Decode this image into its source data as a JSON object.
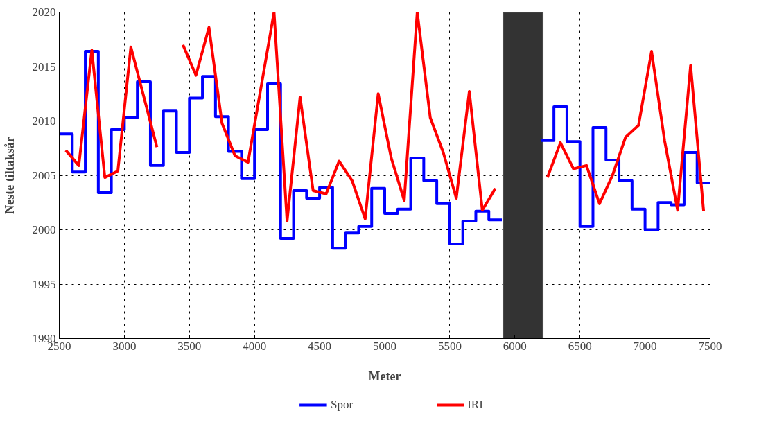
{
  "chart_data": {
    "type": "line",
    "xlabel": "Meter",
    "ylabel": "Neste tiltaksår",
    "xlim": [
      2500,
      7500
    ],
    "ylim": [
      1990,
      2020
    ],
    "xticks": [
      2500,
      3000,
      3500,
      4000,
      4500,
      5000,
      5500,
      6000,
      6500,
      7000,
      7500
    ],
    "yticks": [
      1990,
      1995,
      2000,
      2005,
      2010,
      2015,
      2020
    ],
    "grid": true,
    "legend": "bottom",
    "bands": [
      {
        "axis": "x",
        "from": 5910,
        "to": 6215,
        "color": "#333333"
      }
    ],
    "series": [
      {
        "name": "Spor",
        "type": "step",
        "color": "#0000ff",
        "x": [
          2500,
          2600,
          2700,
          2800,
          2900,
          3000,
          3100,
          3200,
          3300,
          3400,
          3500,
          3600,
          3700,
          3800,
          3900,
          4000,
          4100,
          4200,
          4300,
          4400,
          4500,
          4600,
          4700,
          4800,
          4900,
          5000,
          5100,
          5200,
          5300,
          5400,
          5500,
          5600,
          5700,
          5800,
          6200,
          6300,
          6400,
          6500,
          6600,
          6700,
          6800,
          6900,
          7000,
          7100,
          7200,
          7300,
          7400,
          7500
        ],
        "values": [
          2008.8,
          2005.3,
          2016.4,
          2003.4,
          2009.2,
          2010.3,
          2013.6,
          2005.9,
          2010.9,
          2007.1,
          2012.1,
          2014.1,
          2010.4,
          2007.2,
          2004.7,
          2009.2,
          2013.4,
          1999.2,
          2003.6,
          2002.9,
          2003.9,
          1998.3,
          1999.7,
          2000.3,
          2003.8,
          2001.5,
          2001.9,
          2006.6,
          2004.5,
          2002.4,
          1998.7,
          2000.8,
          2001.7,
          2000.9,
          2008.2,
          2011.3,
          2008.1,
          2000.3,
          2009.4,
          2006.4,
          2004.5,
          2001.9,
          2000.0,
          2002.5,
          2002.3,
          2007.1,
          2004.3,
          2004.3
        ]
      },
      {
        "name": "IRI",
        "type": "line",
        "color": "#ff0000",
        "x": [
          2550,
          2650,
          2750,
          2850,
          2950,
          3050,
          3150,
          3250,
          3350,
          3450,
          3550,
          3650,
          3750,
          3850,
          3950,
          4050,
          4150,
          4250,
          4350,
          4450,
          4550,
          4650,
          4750,
          4850,
          4950,
          5050,
          5150,
          5250,
          5350,
          5450,
          5550,
          5650,
          5750,
          5850,
          5950,
          6250,
          6350,
          6450,
          6550,
          6650,
          6750,
          6850,
          6950,
          7050,
          7150,
          7250,
          7350,
          7450
        ],
        "values": [
          2007.3,
          2005.9,
          2016.5,
          2004.8,
          2005.4,
          2016.8,
          2012.2,
          2007.6,
          null,
          2017.0,
          2014.2,
          2018.6,
          2009.8,
          2006.8,
          2006.2,
          2013.1,
          2020,
          2000.8,
          2012.2,
          2003.6,
          2003.3,
          2006.3,
          2004.5,
          2001.0,
          2012.5,
          2006.6,
          2002.7,
          2020,
          2010.3,
          2007.1,
          2002.9,
          2012.7,
          2001.8,
          2003.8,
          null,
          2004.8,
          2008.0,
          2005.6,
          2005.9,
          2002.4,
          2005.0,
          2008.5,
          2009.6,
          2016.4,
          2008.2,
          2001.8,
          2015.1,
          2001.7
        ]
      }
    ]
  }
}
